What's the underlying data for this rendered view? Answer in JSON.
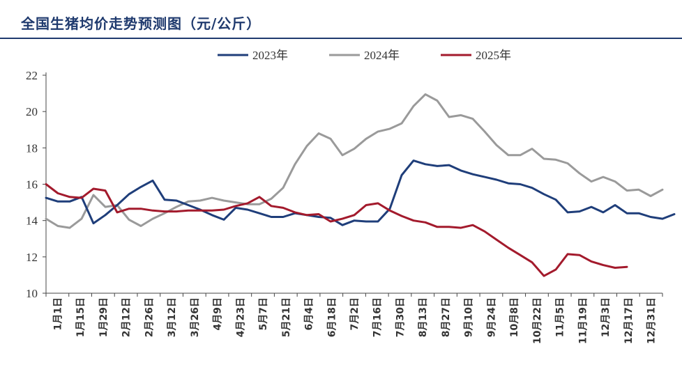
{
  "chart_data": {
    "type": "line",
    "title": "全国生猪均价走势预测图（元/公斤）",
    "xlabel": "",
    "ylabel": "",
    "ylim": [
      10,
      22
    ],
    "yticks": [
      10,
      12,
      14,
      16,
      18,
      20,
      22
    ],
    "xlabels": [
      "1月1日",
      "1月15日",
      "1月29日",
      "2月12日",
      "2月26日",
      "3月12日",
      "3月26日",
      "4月9日",
      "4月23日",
      "5月7日",
      "5月21日",
      "6月4日",
      "6月18日",
      "7月2日",
      "7月16日",
      "7月30日",
      "8月13日",
      "8月27日",
      "9月10日",
      "9月24日",
      "10月8日",
      "10月22日",
      "11月5日",
      "11月19日",
      "12月3日",
      "12月17日",
      "12月31日"
    ],
    "series": [
      {
        "name": "2023年",
        "color": "#1f3e7a",
        "values": [
          15.25,
          15.05,
          15.05,
          15.3,
          13.85,
          14.3,
          14.85,
          15.45,
          15.85,
          16.2,
          15.15,
          15.1,
          14.85,
          14.6,
          14.3,
          14.05,
          14.7,
          14.6,
          14.4,
          14.2,
          14.2,
          14.4,
          14.3,
          14.2,
          14.15,
          13.75,
          14.0,
          13.95,
          13.95,
          14.65,
          16.5,
          17.3,
          17.1,
          17.0,
          17.05,
          16.75,
          16.55,
          16.4,
          16.25,
          16.05,
          16.0,
          15.8,
          15.45,
          15.15,
          14.45,
          14.5,
          14.75,
          14.45,
          14.85,
          14.4,
          14.4,
          14.2,
          14.1,
          14.35
        ]
      },
      {
        "name": "2024年",
        "color": "#9a9a9a",
        "values": [
          14.1,
          13.7,
          13.6,
          14.1,
          15.4,
          14.75,
          14.85,
          14.05,
          13.7,
          14.1,
          14.4,
          14.75,
          15.05,
          15.1,
          15.25,
          15.1,
          15.0,
          14.9,
          14.9,
          15.2,
          15.8,
          17.1,
          18.1,
          18.8,
          18.5,
          17.6,
          17.95,
          18.5,
          18.9,
          19.05,
          19.35,
          20.3,
          20.95,
          20.6,
          19.7,
          19.8,
          19.6,
          18.9,
          18.15,
          17.6,
          17.6,
          17.95,
          17.4,
          17.35,
          17.15,
          16.6,
          16.15,
          16.4,
          16.15,
          15.65,
          15.7,
          15.35,
          15.7
        ]
      },
      {
        "name": "2025年",
        "color": "#a31a2c",
        "values": [
          16.0,
          15.5,
          15.3,
          15.25,
          15.75,
          15.65,
          14.45,
          14.65,
          14.65,
          14.55,
          14.5,
          14.5,
          14.55,
          14.55,
          14.55,
          14.6,
          14.8,
          14.95,
          15.3,
          14.8,
          14.7,
          14.45,
          14.3,
          14.35,
          13.95,
          14.1,
          14.3,
          14.85,
          14.95,
          14.55,
          14.25,
          14.0,
          13.9,
          13.65,
          13.65,
          13.6,
          13.75,
          13.4,
          12.95,
          12.5,
          12.1,
          11.7,
          10.95,
          11.3,
          12.15,
          12.1,
          11.75,
          11.55,
          11.4,
          11.45
        ]
      }
    ]
  }
}
